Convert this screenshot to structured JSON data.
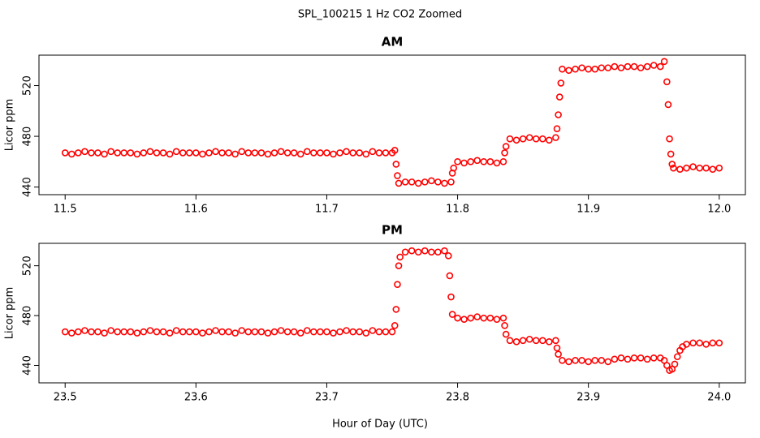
{
  "title": "SPL_100215  1 Hz CO2 Zoomed",
  "xlabel": "Hour of Day (UTC)",
  "chart_data": [
    {
      "type": "scatter",
      "title": "AM",
      "ylabel": "Licor ppm",
      "xlim": [
        11.48,
        12.02
      ],
      "ylim": [
        434,
        544
      ],
      "xticks": [
        11.5,
        11.6,
        11.7,
        11.8,
        11.9,
        {
          "value": 12,
          "label": "12.0"
        }
      ],
      "yticks": [
        440,
        480,
        520
      ],
      "x": [
        11.5,
        11.505,
        11.51,
        11.515,
        11.52,
        11.525,
        11.53,
        11.535,
        11.54,
        11.545,
        11.55,
        11.555,
        11.56,
        11.565,
        11.57,
        11.575,
        11.58,
        11.585,
        11.59,
        11.595,
        11.6,
        11.605,
        11.61,
        11.615,
        11.62,
        11.625,
        11.63,
        11.635,
        11.64,
        11.645,
        11.65,
        11.655,
        11.66,
        11.665,
        11.67,
        11.675,
        11.68,
        11.685,
        11.69,
        11.695,
        11.7,
        11.705,
        11.71,
        11.715,
        11.72,
        11.725,
        11.73,
        11.735,
        11.74,
        11.745,
        11.75,
        11.752,
        11.753,
        11.754,
        11.755,
        11.76,
        11.765,
        11.77,
        11.775,
        11.78,
        11.785,
        11.79,
        11.795,
        11.796,
        11.797,
        11.8,
        11.805,
        11.81,
        11.815,
        11.82,
        11.825,
        11.83,
        11.835,
        11.836,
        11.837,
        11.84,
        11.845,
        11.85,
        11.855,
        11.86,
        11.865,
        11.87,
        11.875,
        11.876,
        11.877,
        11.878,
        11.879,
        11.88,
        11.885,
        11.89,
        11.895,
        11.9,
        11.905,
        11.91,
        11.915,
        11.92,
        11.925,
        11.93,
        11.935,
        11.94,
        11.945,
        11.95,
        11.955,
        11.958,
        11.96,
        11.961,
        11.962,
        11.963,
        11.964,
        11.965,
        11.97,
        11.975,
        11.98,
        11.985,
        11.99,
        11.995,
        12.0
      ],
      "series": [
        {
          "color": "#ff0000",
          "values": [
            467,
            466,
            467,
            468,
            467,
            467,
            466,
            468,
            467,
            467,
            467,
            466,
            467,
            468,
            467,
            467,
            466,
            468,
            467,
            467,
            467,
            466,
            467,
            468,
            467,
            467,
            466,
            468,
            467,
            467,
            467,
            466,
            467,
            468,
            467,
            467,
            466,
            468,
            467,
            467,
            467,
            466,
            467,
            468,
            467,
            467,
            466,
            468,
            467,
            467,
            467,
            469,
            458,
            449,
            443,
            444,
            444,
            443,
            444,
            445,
            444,
            443,
            444,
            451,
            455,
            460,
            459,
            460,
            461,
            460,
            460,
            459,
            460,
            467,
            472,
            478,
            477,
            478,
            479,
            478,
            478,
            477,
            479,
            486,
            497,
            511,
            522,
            533,
            532,
            533,
            534,
            533,
            533,
            534,
            534,
            535,
            534,
            535,
            535,
            534,
            535,
            536,
            535,
            539,
            523,
            505,
            478,
            466,
            458,
            455,
            454,
            455,
            456,
            455,
            455,
            454,
            455
          ]
        }
      ]
    },
    {
      "type": "scatter",
      "title": "PM",
      "ylabel": "Licor ppm",
      "xlim": [
        23.48,
        24.02
      ],
      "ylim": [
        426,
        538
      ],
      "xticks": [
        23.5,
        23.6,
        23.7,
        23.8,
        23.9,
        {
          "value": 24,
          "label": "24.0"
        }
      ],
      "yticks": [
        440,
        480,
        520
      ],
      "x": [
        23.5,
        23.505,
        23.51,
        23.515,
        23.52,
        23.525,
        23.53,
        23.535,
        23.54,
        23.545,
        23.55,
        23.555,
        23.56,
        23.565,
        23.57,
        23.575,
        23.58,
        23.585,
        23.59,
        23.595,
        23.6,
        23.605,
        23.61,
        23.615,
        23.62,
        23.625,
        23.63,
        23.635,
        23.64,
        23.645,
        23.65,
        23.655,
        23.66,
        23.665,
        23.67,
        23.675,
        23.68,
        23.685,
        23.69,
        23.695,
        23.7,
        23.705,
        23.71,
        23.715,
        23.72,
        23.725,
        23.73,
        23.735,
        23.74,
        23.745,
        23.75,
        23.752,
        23.753,
        23.754,
        23.755,
        23.756,
        23.76,
        23.765,
        23.77,
        23.775,
        23.78,
        23.785,
        23.79,
        23.793,
        23.794,
        23.795,
        23.796,
        23.8,
        23.805,
        23.81,
        23.815,
        23.82,
        23.825,
        23.83,
        23.835,
        23.836,
        23.837,
        23.84,
        23.845,
        23.85,
        23.855,
        23.86,
        23.865,
        23.87,
        23.875,
        23.876,
        23.877,
        23.88,
        23.885,
        23.89,
        23.895,
        23.9,
        23.905,
        23.91,
        23.915,
        23.92,
        23.925,
        23.93,
        23.935,
        23.94,
        23.945,
        23.95,
        23.955,
        23.958,
        23.96,
        23.962,
        23.964,
        23.966,
        23.968,
        23.97,
        23.972,
        23.975,
        23.98,
        23.985,
        23.99,
        23.995,
        24.0
      ],
      "series": [
        {
          "color": "#ff0000",
          "values": [
            467,
            466,
            467,
            468,
            467,
            467,
            466,
            468,
            467,
            467,
            467,
            466,
            467,
            468,
            467,
            467,
            466,
            468,
            467,
            467,
            467,
            466,
            467,
            468,
            467,
            467,
            466,
            468,
            467,
            467,
            467,
            466,
            467,
            468,
            467,
            467,
            466,
            468,
            467,
            467,
            467,
            466,
            467,
            468,
            467,
            467,
            466,
            468,
            467,
            467,
            467,
            472,
            485,
            505,
            520,
            527,
            531,
            532,
            531,
            532,
            531,
            531,
            532,
            528,
            512,
            495,
            481,
            478,
            477,
            478,
            479,
            478,
            478,
            477,
            478,
            472,
            465,
            460,
            459,
            460,
            461,
            460,
            460,
            459,
            460,
            454,
            449,
            444,
            443,
            444,
            444,
            443,
            444,
            444,
            443,
            445,
            446,
            445,
            446,
            446,
            445,
            446,
            446,
            444,
            440,
            436,
            437,
            441,
            447,
            452,
            455,
            457,
            458,
            458,
            457,
            458,
            458
          ]
        }
      ]
    }
  ]
}
